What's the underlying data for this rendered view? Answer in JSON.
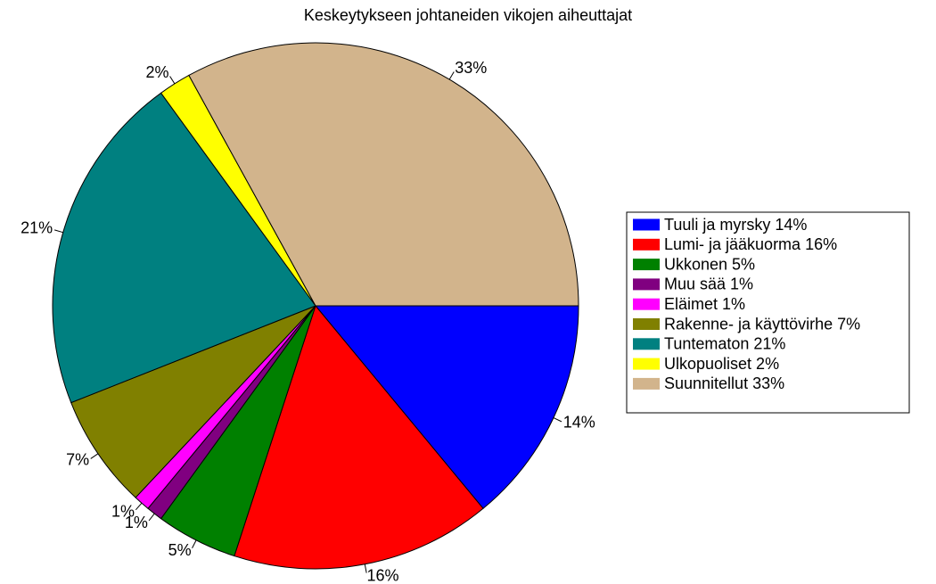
{
  "chart_data": {
    "type": "pie",
    "title": "Keskeytykseen johtaneiden vikojen aiheuttajat",
    "categories": [
      "Tuuli ja myrsky 14%",
      "Lumi- ja jääkuorma 16%",
      "Ukkonen 5%",
      "Muu sää 1%",
      "Eläimet 1%",
      "Rakenne- ja käyttövirhe 7%",
      "Tuntematon 21%",
      "Ulkopuoliset 2%",
      "Suunnitellut 33%"
    ],
    "values": [
      14,
      16,
      5,
      1,
      1,
      7,
      21,
      2,
      33
    ],
    "value_labels": [
      "14%",
      "16%",
      "5%",
      "1%",
      "1%",
      "7%",
      "21%",
      "2%",
      "33%"
    ],
    "colors": [
      "#0000ff",
      "#ff0000",
      "#008000",
      "#800080",
      "#ff00ff",
      "#808000",
      "#008080",
      "#ffff00",
      "#d2b48c"
    ],
    "legend": "right"
  }
}
